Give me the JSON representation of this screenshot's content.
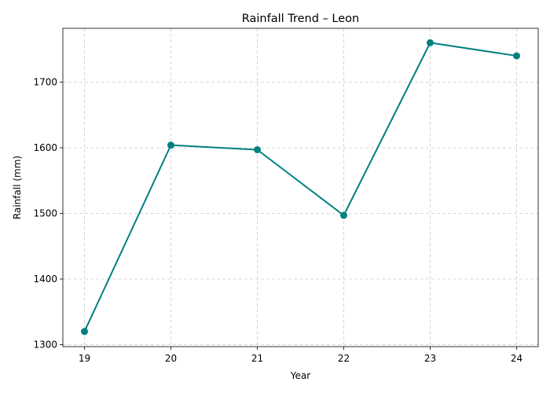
{
  "chart_data": {
    "type": "line",
    "title": "Rainfall Trend – Leon",
    "xlabel": "Year",
    "ylabel": "Rainfall (mm)",
    "x": [
      "19",
      "20",
      "21",
      "22",
      "23",
      "24"
    ],
    "series": [
      {
        "values": [
          1320,
          1604,
          1597,
          1497,
          1760,
          1740
        ]
      }
    ],
    "ylim": [
      1297,
      1782
    ],
    "yticks": [
      1300,
      1400,
      1500,
      1600,
      1700
    ],
    "grid": true,
    "marker": "circle",
    "color": "#008080"
  }
}
